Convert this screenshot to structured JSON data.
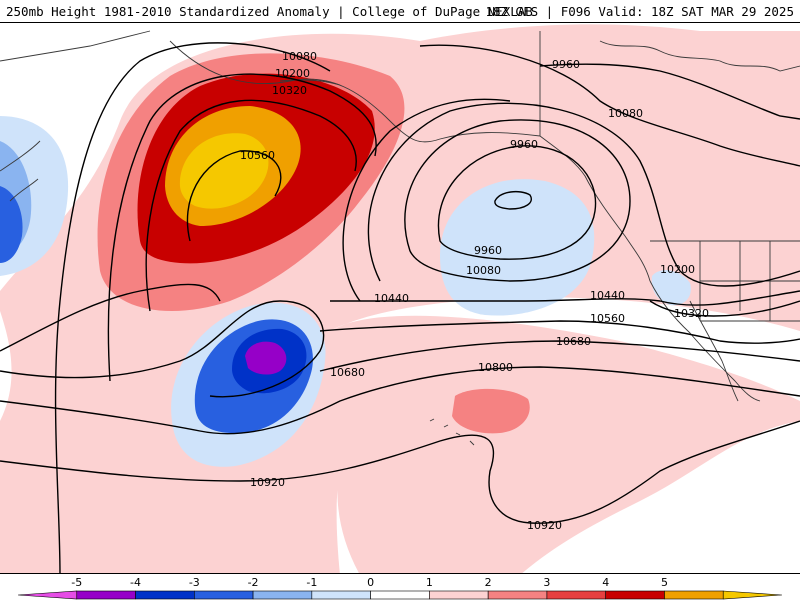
{
  "header": {
    "title": "250mb Height 1981-2010 Standardized Anomaly | College of DuPage NEXLAB",
    "valid": "18Z GFS | F096 Valid: 18Z SAT MAR 29 2025"
  },
  "map": {
    "contour_labels": [
      "10080",
      "10200",
      "10320",
      "10560",
      "9960",
      "9960",
      "10080",
      "9960",
      "10080",
      "10200",
      "10320",
      "10440",
      "10440",
      "10560",
      "10680",
      "10680",
      "10800",
      "10920",
      "10920"
    ],
    "contour_color": "#000000",
    "coastline_color": "#3a3a3a"
  },
  "legend": {
    "ticks": [
      "-5",
      "-4",
      "-3",
      "-2",
      "-1",
      "0",
      "1",
      "2",
      "3",
      "4",
      "5"
    ],
    "colors": [
      "#e64de6",
      "#9600c8",
      "#0032c8",
      "#2860e0",
      "#8ab4f0",
      "#cfe3fa",
      "#ffffff",
      "#fcd2d2",
      "#f58282",
      "#e64040",
      "#c80000",
      "#f0a000",
      "#f5c800"
    ]
  }
}
